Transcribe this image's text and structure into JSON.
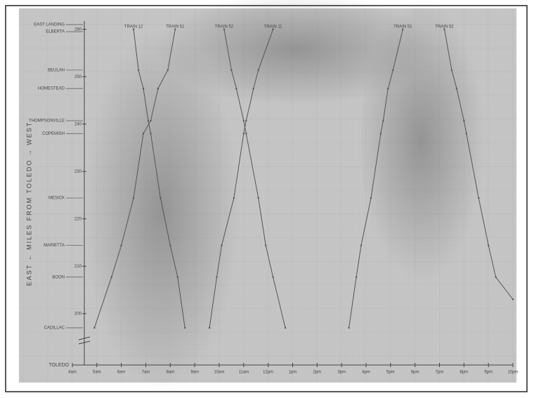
{
  "chart_data": {
    "type": "line",
    "y_axis_label": "EAST ← MILES FROM TOLEDO → WEST",
    "break_label": "TOLEDO",
    "xlim": [
      4,
      22
    ],
    "xticks": [
      {
        "value": 4,
        "label": "4am"
      },
      {
        "value": 5,
        "label": "5am"
      },
      {
        "value": 6,
        "label": "6am"
      },
      {
        "value": 7,
        "label": "7am"
      },
      {
        "value": 8,
        "label": "8am"
      },
      {
        "value": 9,
        "label": "9am"
      },
      {
        "value": 10,
        "label": "10am"
      },
      {
        "value": 11,
        "label": "11am"
      },
      {
        "value": 12,
        "label": "12pm"
      },
      {
        "value": 13,
        "label": "1pm"
      },
      {
        "value": 14,
        "label": "2pm"
      },
      {
        "value": 15,
        "label": "3pm"
      },
      {
        "value": 16,
        "label": "4pm"
      },
      {
        "value": 17,
        "label": "5pm"
      },
      {
        "value": 18,
        "label": "6pm"
      },
      {
        "value": 19,
        "label": "7pm"
      },
      {
        "value": 20,
        "label": "8pm"
      },
      {
        "value": 21,
        "label": "9pm"
      },
      {
        "value": 22,
        "label": "10pm"
      }
    ],
    "ylim": [
      193,
      261
    ],
    "yticks": [
      200,
      210,
      220,
      230,
      240,
      250,
      260
    ],
    "stations": [
      {
        "name": "EAST LANDING",
        "mile": 261
      },
      {
        "name": "ELBERTA",
        "mile": 259.5
      },
      {
        "name": "BEULAH",
        "mile": 251.4
      },
      {
        "name": "HOMESTEAD",
        "mile": 247.5
      },
      {
        "name": "THOMPSONVILLE",
        "mile": 240.7
      },
      {
        "name": "COPEMISH",
        "mile": 238
      },
      {
        "name": "MESICK",
        "mile": 224.4
      },
      {
        "name": "MARIETTA",
        "mile": 214.4
      },
      {
        "name": "BOON",
        "mile": 207.7
      },
      {
        "name": "CADILLAC",
        "mile": 197
      }
    ],
    "series": [
      {
        "name": "TRAIN 51",
        "color": "#555555",
        "x": [
          4.9,
          5.6,
          6.0,
          6.5,
          6.9,
          7.2,
          7.5,
          7.9,
          8.2
        ],
        "values": [
          197,
          207.7,
          214.4,
          224.4,
          238,
          240.7,
          247.5,
          251.4,
          260
        ]
      },
      {
        "name": "TRAIN 12",
        "color": "#555555",
        "x": [
          6.5,
          6.7,
          6.9,
          7.1,
          7.2,
          7.6,
          8.0,
          8.3,
          8.6
        ],
        "values": [
          260,
          251.4,
          247.5,
          240.7,
          238,
          224.4,
          214.4,
          207.7,
          197
        ]
      },
      {
        "name": "TRAIN 52",
        "color": "#555555",
        "x": [
          10.2,
          10.5,
          10.7,
          11.0,
          11.1,
          11.6,
          11.9,
          12.2,
          12.7
        ],
        "values": [
          260,
          251.4,
          247.5,
          240.7,
          238,
          224.4,
          214.4,
          207.7,
          197
        ]
      },
      {
        "name": "TRAIN 11",
        "color": "#555555",
        "x": [
          9.6,
          9.9,
          10.1,
          10.6,
          11.0,
          11.1,
          11.4,
          11.6,
          12.2
        ],
        "values": [
          197,
          207.7,
          214.4,
          224.4,
          238,
          240.7,
          247.5,
          251.4,
          260
        ]
      },
      {
        "name": "TRAIN 51",
        "color": "#555555",
        "x": [
          15.3,
          15.6,
          15.8,
          16.2,
          16.6,
          16.7,
          16.9,
          17.1,
          17.5
        ],
        "values": [
          197,
          207.7,
          214.4,
          224.4,
          238,
          240.7,
          247.5,
          251.4,
          260
        ]
      },
      {
        "name": "TRAIN 52",
        "color": "#555555",
        "x": [
          19.2,
          19.5,
          19.7,
          20.0,
          20.1,
          20.6,
          21.0,
          21.3,
          22.0
        ],
        "values": [
          260,
          251.4,
          247.5,
          240.7,
          238,
          224.4,
          214.4,
          207.7,
          203
        ]
      }
    ]
  }
}
